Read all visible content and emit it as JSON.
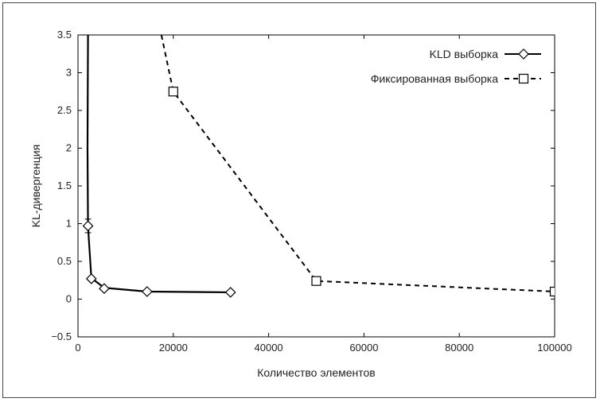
{
  "chart_data": {
    "type": "line",
    "title": "",
    "xlabel": "Количество элементов",
    "ylabel": "KL-дивергенция",
    "xlim": [
      0,
      100000
    ],
    "ylim": [
      -0.5,
      3.5
    ],
    "xticks": [
      0,
      20000,
      40000,
      60000,
      80000,
      100000
    ],
    "xtick_labels": [
      "0",
      "20000",
      "40000",
      "60000",
      "80000",
      "100000"
    ],
    "yticks": [
      -0.5,
      0,
      0.5,
      1,
      1.5,
      2,
      2.5,
      3,
      3.5
    ],
    "ytick_labels": [
      "−0.5",
      "0",
      "0.5",
      "1",
      "1.5",
      "2",
      "2.5",
      "3",
      "3.5"
    ],
    "grid": false,
    "legend_position": "top-right",
    "series": [
      {
        "name": "KLD выборка",
        "style": "solid",
        "marker": "diamond",
        "color": "#000000",
        "line_points": [
          [
            2100,
            3.5
          ],
          [
            2000,
            2.0
          ],
          [
            2100,
            0.97
          ],
          [
            2800,
            0.28
          ],
          [
            5500,
            0.15
          ],
          [
            14500,
            0.1
          ],
          [
            32000,
            0.09
          ]
        ],
        "markers": [
          [
            2100,
            0.97
          ],
          [
            2800,
            0.27
          ],
          [
            5500,
            0.14
          ],
          [
            14500,
            0.1
          ],
          [
            32000,
            0.09
          ]
        ],
        "error": [
          0.09,
          0.03,
          0.01,
          0.01,
          0.01
        ]
      },
      {
        "name": "Фиксированная выборка",
        "style": "dashed",
        "marker": "square",
        "color": "#000000",
        "line_points": [
          [
            17500,
            3.5
          ],
          [
            20000,
            2.75
          ],
          [
            50000,
            0.24
          ],
          [
            100000,
            0.1
          ]
        ],
        "markers": [
          [
            20000,
            2.75
          ],
          [
            50000,
            0.24
          ],
          [
            100000,
            0.1
          ]
        ],
        "error": [
          0.04,
          0.03,
          0.03
        ]
      }
    ]
  }
}
